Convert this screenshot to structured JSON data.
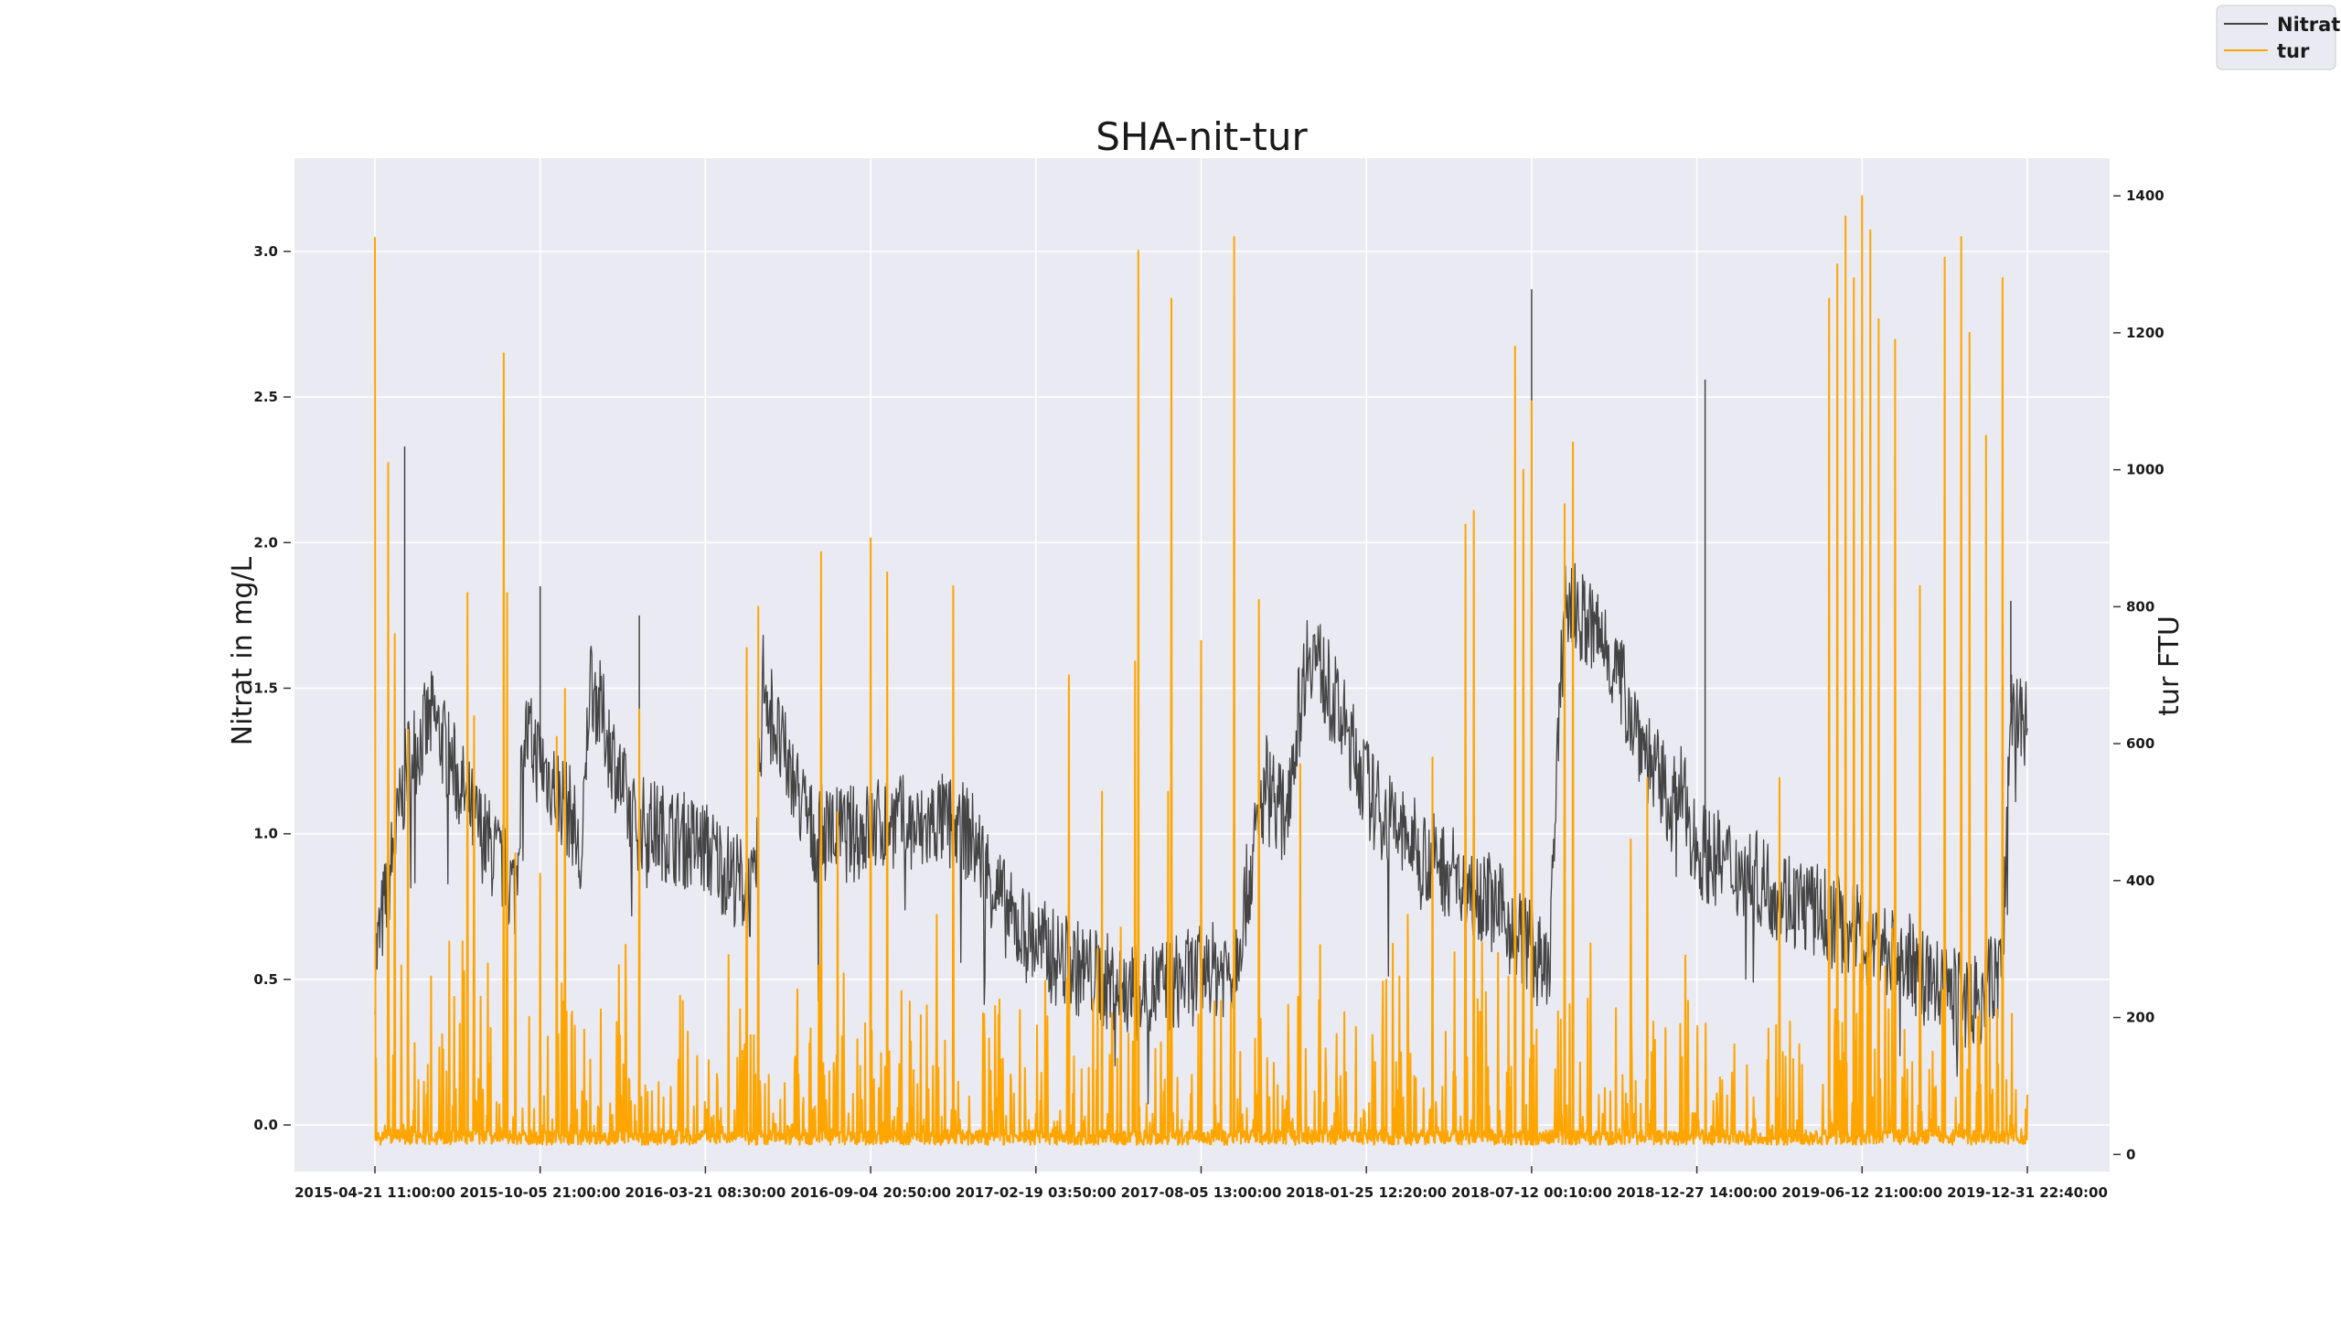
{
  "chart_data": {
    "type": "line",
    "title": "SHA-nit-tur",
    "ylabel": "Nitrat in mg/L",
    "y2label": "tur FTU",
    "xlabel": "",
    "ylim": [
      -0.16,
      3.32
    ],
    "y2lim": [
      -25,
      1455
    ],
    "yticks": [
      "0.0",
      "0.5",
      "1.0",
      "1.5",
      "2.0",
      "2.5",
      "3.0"
    ],
    "y2ticks": [
      "0",
      "200",
      "400",
      "600",
      "800",
      "1000",
      "1200",
      "1400"
    ],
    "xticks": [
      "2015-04-21 11:00:00",
      "2015-10-05 21:00:00",
      "2016-03-21 08:30:00",
      "2016-09-04 20:50:00",
      "2017-02-19 03:50:00",
      "2017-08-05 13:00:00",
      "2018-01-25 12:20:00",
      "2018-07-12 00:10:00",
      "2018-12-27 14:00:00",
      "2019-06-12 21:00:00",
      "2019-12-31 22:40:00"
    ],
    "x_range": [
      "2015-04-21 11:00:00",
      "2019-12-31 22:40:00"
    ],
    "grid": true,
    "legend_position": "top-right",
    "series": [
      {
        "name": "Nitrat",
        "axis": "left",
        "color": "#444444",
        "base": [
          [
            0.0,
            0.55
          ],
          [
            0.02,
            1.25
          ],
          [
            0.035,
            1.4
          ],
          [
            0.06,
            1.05
          ],
          [
            0.085,
            0.8
          ],
          [
            0.09,
            1.35
          ],
          [
            0.12,
            1.05
          ],
          [
            0.125,
            0.85
          ],
          [
            0.13,
            1.55
          ],
          [
            0.155,
            1.05
          ],
          [
            0.2,
            0.95
          ],
          [
            0.23,
            0.78
          ],
          [
            0.235,
            1.55
          ],
          [
            0.245,
            1.3
          ],
          [
            0.265,
            1.0
          ],
          [
            0.29,
            1.0
          ],
          [
            0.315,
            1.05
          ],
          [
            0.33,
            1.0
          ],
          [
            0.34,
            1.05
          ],
          [
            0.36,
            1.0
          ],
          [
            0.385,
            0.7
          ],
          [
            0.41,
            0.58
          ],
          [
            0.44,
            0.5
          ],
          [
            0.46,
            0.45
          ],
          [
            0.49,
            0.5
          ],
          [
            0.52,
            0.55
          ],
          [
            0.54,
            1.2
          ],
          [
            0.55,
            1.05
          ],
          [
            0.565,
            1.65
          ],
          [
            0.57,
            1.6
          ],
          [
            0.605,
            1.1
          ],
          [
            0.63,
            0.95
          ],
          [
            0.67,
            0.8
          ],
          [
            0.7,
            0.6
          ],
          [
            0.71,
            0.5
          ],
          [
            0.72,
            1.8
          ],
          [
            0.745,
            1.65
          ],
          [
            0.775,
            1.2
          ],
          [
            0.785,
            1.1
          ],
          [
            0.79,
            1.15
          ],
          [
            0.8,
            0.95
          ],
          [
            0.85,
            0.8
          ],
          [
            0.9,
            0.65
          ],
          [
            0.93,
            0.55
          ],
          [
            0.95,
            0.45
          ],
          [
            0.97,
            0.42
          ],
          [
            0.985,
            0.55
          ],
          [
            0.99,
            1.45
          ],
          [
            1.0,
            1.35
          ]
        ],
        "spikes": [
          [
            0.018,
            2.33
          ],
          [
            0.1,
            1.85
          ],
          [
            0.16,
            1.75
          ],
          [
            0.69,
            2.1
          ],
          [
            0.7,
            2.87
          ],
          [
            0.805,
            2.56
          ],
          [
            0.99,
            1.8
          ]
        ]
      },
      {
        "name": "tur",
        "axis": "right",
        "color": "#ffa500",
        "baseline": 25,
        "spikes": [
          [
            0.0,
            1340
          ],
          [
            0.008,
            1010
          ],
          [
            0.012,
            760
          ],
          [
            0.02,
            620
          ],
          [
            0.034,
            260
          ],
          [
            0.056,
            820
          ],
          [
            0.06,
            640
          ],
          [
            0.078,
            1170
          ],
          [
            0.08,
            820
          ],
          [
            0.085,
            440
          ],
          [
            0.1,
            410
          ],
          [
            0.11,
            610
          ],
          [
            0.115,
            680
          ],
          [
            0.16,
            650
          ],
          [
            0.225,
            740
          ],
          [
            0.232,
            800
          ],
          [
            0.27,
            880
          ],
          [
            0.28,
            500
          ],
          [
            0.3,
            900
          ],
          [
            0.31,
            850
          ],
          [
            0.34,
            350
          ],
          [
            0.35,
            830
          ],
          [
            0.42,
            700
          ],
          [
            0.44,
            530
          ],
          [
            0.46,
            720
          ],
          [
            0.462,
            1320
          ],
          [
            0.48,
            530
          ],
          [
            0.482,
            1250
          ],
          [
            0.5,
            750
          ],
          [
            0.52,
            1340
          ],
          [
            0.535,
            810
          ],
          [
            0.56,
            570
          ],
          [
            0.62,
            260
          ],
          [
            0.625,
            350
          ],
          [
            0.64,
            580
          ],
          [
            0.66,
            590
          ],
          [
            0.66,
            920
          ],
          [
            0.665,
            940
          ],
          [
            0.69,
            1180
          ],
          [
            0.695,
            1000
          ],
          [
            0.7,
            1100
          ],
          [
            0.72,
            950
          ],
          [
            0.725,
            1040
          ],
          [
            0.76,
            460
          ],
          [
            0.77,
            550
          ],
          [
            0.85,
            550
          ],
          [
            0.88,
            1250
          ],
          [
            0.885,
            1300
          ],
          [
            0.89,
            1370
          ],
          [
            0.895,
            1280
          ],
          [
            0.9,
            1400
          ],
          [
            0.905,
            1350
          ],
          [
            0.91,
            1220
          ],
          [
            0.92,
            1190
          ],
          [
            0.935,
            830
          ],
          [
            0.95,
            1310
          ],
          [
            0.96,
            1340
          ],
          [
            0.965,
            1200
          ],
          [
            0.975,
            1050
          ],
          [
            0.985,
            1280
          ]
        ]
      }
    ]
  }
}
